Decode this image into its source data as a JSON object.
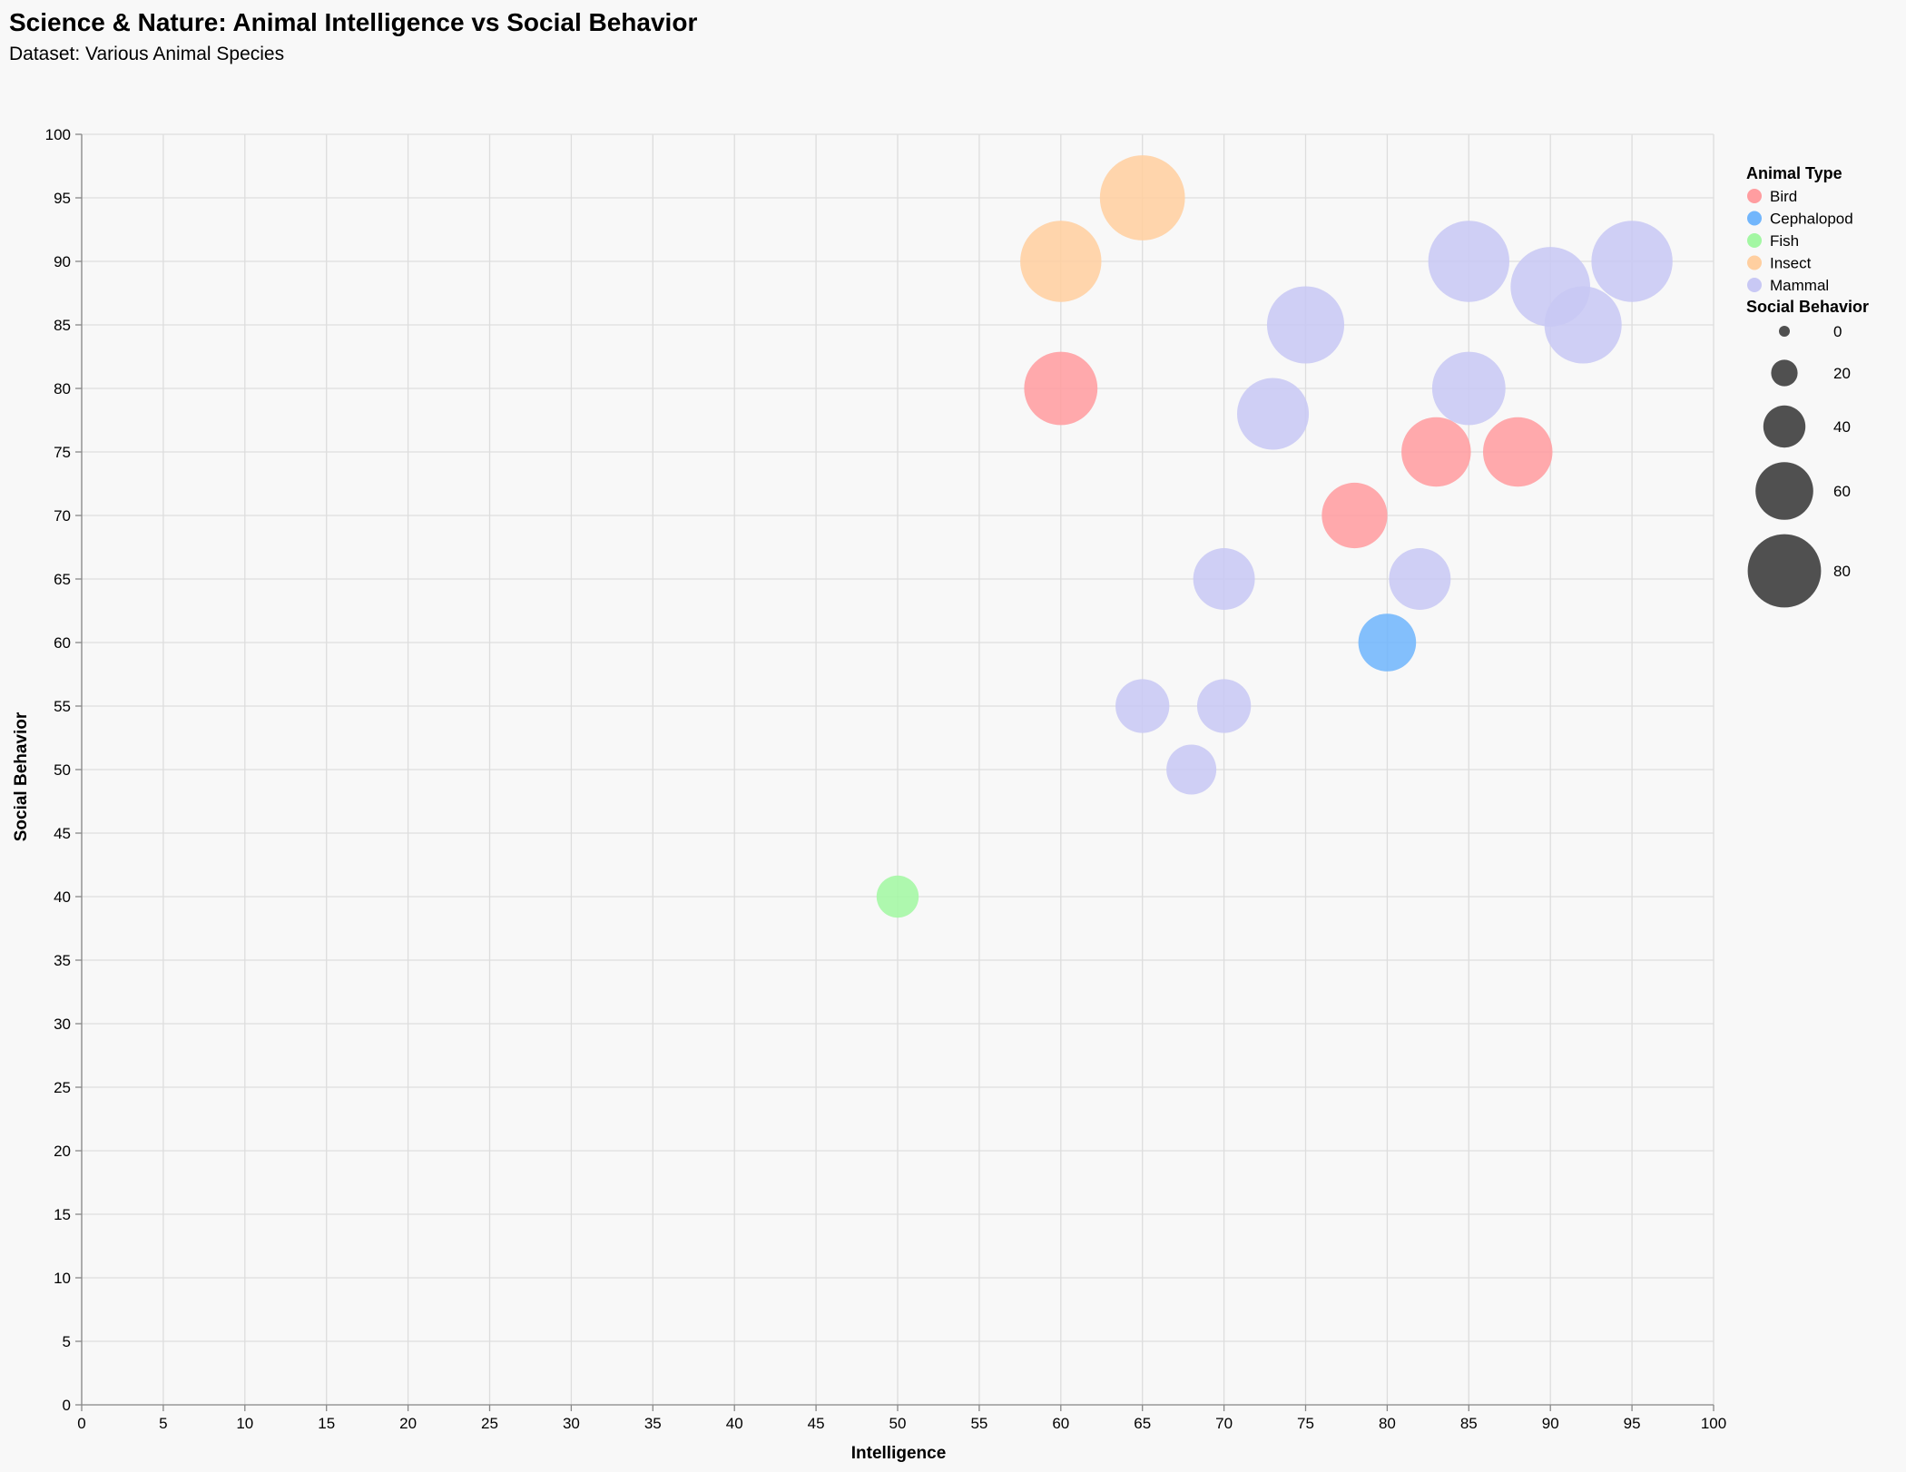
{
  "chart_data": {
    "type": "scatter",
    "title": "Science & Nature: Animal Intelligence vs Social Behavior",
    "subtitle": "Dataset: Various Animal Species",
    "xlabel": "Intelligence",
    "ylabel": "Social Behavior",
    "xlim": [
      0,
      100
    ],
    "ylim": [
      0,
      100
    ],
    "x_ticks": [
      0,
      5,
      10,
      15,
      20,
      25,
      30,
      35,
      40,
      45,
      50,
      55,
      60,
      65,
      70,
      75,
      80,
      85,
      90,
      95,
      100
    ],
    "y_ticks": [
      0,
      5,
      10,
      15,
      20,
      25,
      30,
      35,
      40,
      45,
      50,
      55,
      60,
      65,
      70,
      75,
      80,
      85,
      90,
      95,
      100
    ],
    "grid": true,
    "color_legend": {
      "title": "Animal Type",
      "placement": "top-right",
      "entries": [
        {
          "label": "Bird",
          "color": "#ff9da0"
        },
        {
          "label": "Cephalopod",
          "color": "#72b6fc"
        },
        {
          "label": "Fish",
          "color": "#a3f7a3"
        },
        {
          "label": "Insect",
          "color": "#ffcfa0"
        },
        {
          "label": "Mammal",
          "color": "#c8c8f4"
        }
      ]
    },
    "size_legend": {
      "title": "Social Behavior",
      "values": [
        0,
        20,
        40,
        60,
        80
      ]
    },
    "series": [
      {
        "name": "Bird",
        "color": "#ff9da0",
        "points": [
          [
            60,
            80
          ],
          [
            78,
            70
          ],
          [
            83,
            75
          ],
          [
            88,
            75
          ]
        ]
      },
      {
        "name": "Cephalopod",
        "color": "#72b6fc",
        "points": [
          [
            80,
            60
          ]
        ]
      },
      {
        "name": "Fish",
        "color": "#a3f7a3",
        "points": [
          [
            50,
            40
          ]
        ]
      },
      {
        "name": "Insect",
        "color": "#ffcfa0",
        "points": [
          [
            60,
            90
          ],
          [
            65,
            95
          ]
        ]
      },
      {
        "name": "Mammal",
        "color": "#c8c8f4",
        "points": [
          [
            65,
            55
          ],
          [
            68,
            50
          ],
          [
            70,
            55
          ],
          [
            70,
            65
          ],
          [
            73,
            78
          ],
          [
            75,
            85
          ],
          [
            82,
            65
          ],
          [
            85,
            80
          ],
          [
            85,
            90
          ],
          [
            90,
            88
          ],
          [
            92,
            85
          ],
          [
            95,
            90
          ]
        ]
      }
    ]
  }
}
